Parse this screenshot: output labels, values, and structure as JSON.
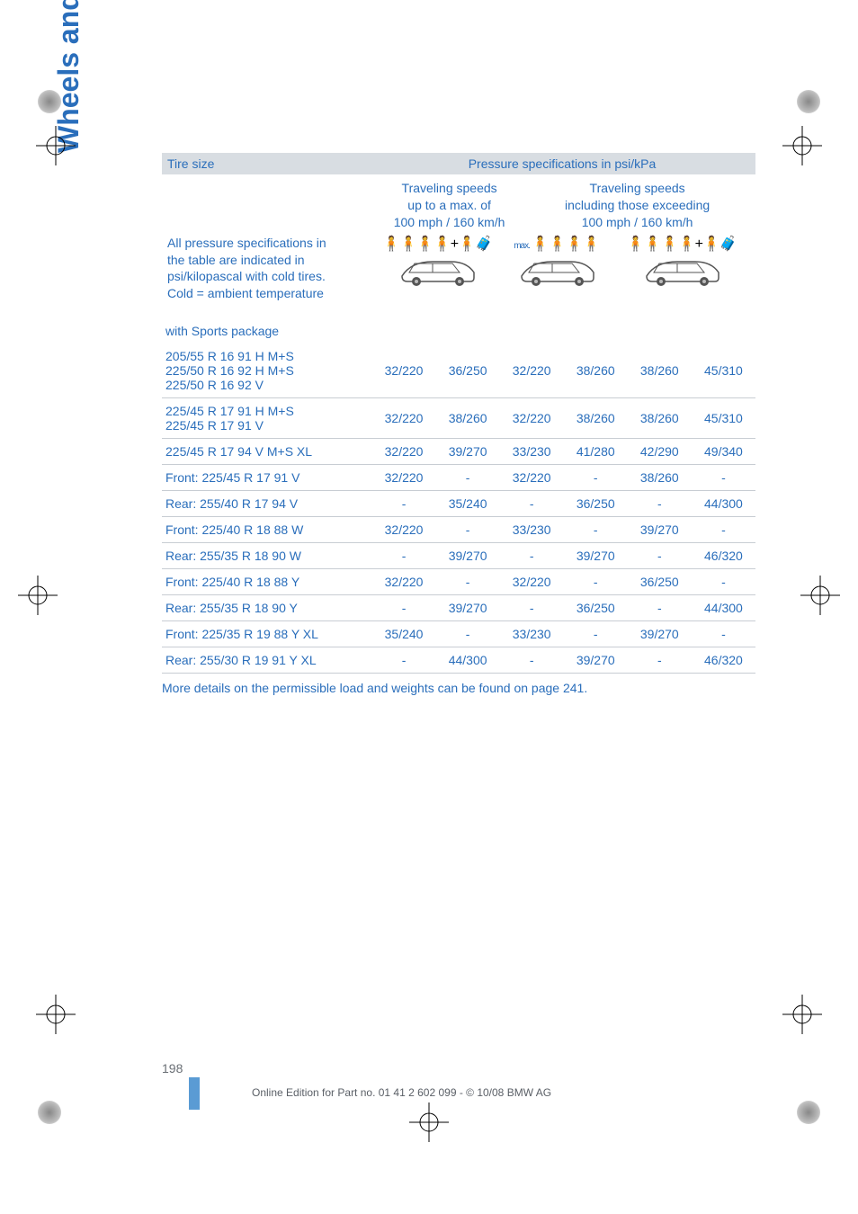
{
  "side_tab": "Wheels and tires",
  "header": {
    "tire_size": "Tire size",
    "pressure_spec": "Pressure specifications in psi/kPa"
  },
  "speed_cols": {
    "left": {
      "l1": "Traveling speeds",
      "l2": "up to a max. of",
      "l3": "100 mph / 160 km/h"
    },
    "right": {
      "l1": "Traveling speeds",
      "l2": "including those exceeding",
      "l3": "100 mph / 160 km/h"
    }
  },
  "note": {
    "l1": "All pressure specifications in",
    "l2": "the table are indicated in",
    "l3": "psi/kilopascal with cold tires.",
    "l4": "Cold = ambient temperature"
  },
  "icons": {
    "full_people": "🧍🧍🧍🧍+🧍🧳",
    "half_people": "🧍🧍🧍🧍",
    "max_label": "max."
  },
  "section": "with Sports package",
  "rows": [
    {
      "label": "205/55 R 16 91 H M+S\n225/50 R 16 92 H M+S\n225/50 R 16 92 V",
      "v": [
        "32/220",
        "36/250",
        "32/220",
        "38/260",
        "38/260",
        "45/310"
      ]
    },
    {
      "label": "225/45 R 17 91 H M+S\n225/45 R 17 91 V",
      "v": [
        "32/220",
        "38/260",
        "32/220",
        "38/260",
        "38/260",
        "45/310"
      ]
    },
    {
      "label": "225/45 R 17 94 V M+S XL",
      "v": [
        "32/220",
        "39/270",
        "33/230",
        "41/280",
        "42/290",
        "49/340"
      ]
    },
    {
      "label": "Front: 225/45 R 17 91 V",
      "v": [
        "32/220",
        "-",
        "32/220",
        "-",
        "38/260",
        "-"
      ]
    },
    {
      "label": "Rear: 255/40 R 17 94 V",
      "v": [
        "-",
        "35/240",
        "-",
        "36/250",
        "-",
        "44/300"
      ]
    },
    {
      "label": "Front: 225/40 R 18 88 W",
      "v": [
        "32/220",
        "-",
        "33/230",
        "-",
        "39/270",
        "-"
      ]
    },
    {
      "label": "Rear: 255/35 R 18 90 W",
      "v": [
        "-",
        "39/270",
        "-",
        "39/270",
        "-",
        "46/320"
      ]
    },
    {
      "label": "Front: 225/40 R 18 88 Y",
      "v": [
        "32/220",
        "-",
        "32/220",
        "-",
        "36/250",
        "-"
      ]
    },
    {
      "label": "Rear: 255/35 R 18 90 Y",
      "v": [
        "-",
        "39/270",
        "-",
        "36/250",
        "-",
        "44/300"
      ]
    },
    {
      "label": "Front: 225/35 R 19 88 Y XL",
      "v": [
        "35/240",
        "-",
        "33/230",
        "-",
        "39/270",
        "-"
      ]
    },
    {
      "label": "Rear: 255/30 R 19 91 Y XL",
      "v": [
        "-",
        "44/300",
        "-",
        "39/270",
        "-",
        "46/320"
      ]
    }
  ],
  "footer_note": {
    "text": "More details on the permissible load and weights can be found on page ",
    "page": "241",
    "dot": "."
  },
  "page_number": "198",
  "copyright": "Online Edition for Part no. 01 41 2 602 099 - © 10/08 BMW AG",
  "colors": {
    "blue": "#2a6ebb",
    "header_bg": "#d8dde2",
    "rule": "#c8cdd3"
  }
}
